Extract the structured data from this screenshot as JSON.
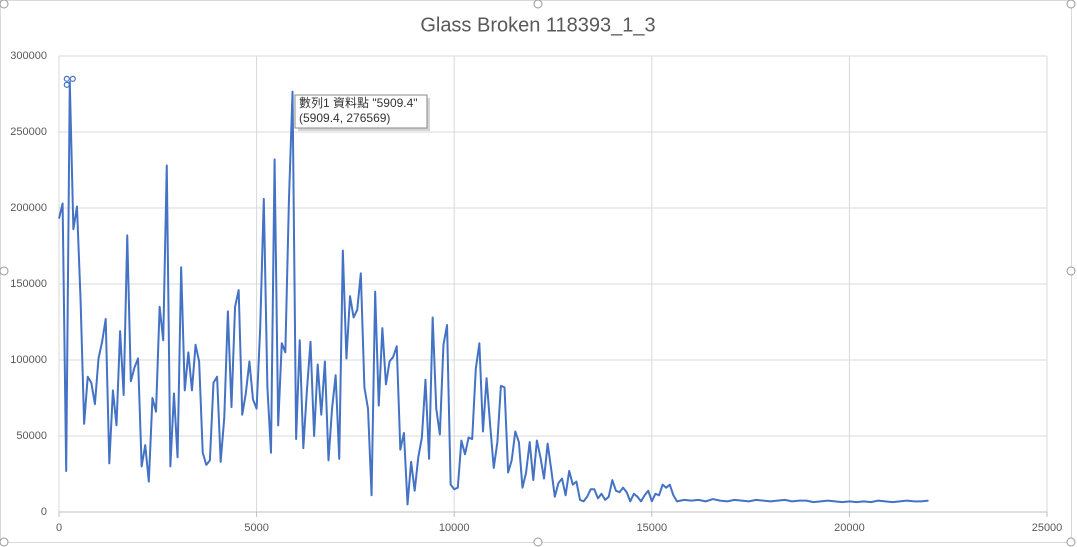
{
  "chart_data": {
    "type": "line",
    "title": "Glass Broken 118393_1_3",
    "x": [
      0,
      91,
      182,
      273,
      364,
      455,
      545,
      636,
      727,
      818,
      909,
      1000,
      1091,
      1182,
      1273,
      1364,
      1455,
      1546,
      1636,
      1727,
      1818,
      1909,
      2000,
      2091,
      2182,
      2273,
      2364,
      2455,
      2546,
      2637,
      2727,
      2818,
      2909,
      3000,
      3091,
      3182,
      3273,
      3364,
      3455,
      3546,
      3637,
      3727,
      3818,
      3909,
      4000,
      4091,
      4182,
      4273,
      4364,
      4455,
      4546,
      4637,
      4727,
      4818,
      4909,
      5000,
      5091,
      5182,
      5273,
      5364,
      5455,
      5546,
      5637,
      5727,
      5818,
      5909.4,
      6000,
      6091,
      6182,
      6273,
      6364,
      6455,
      6546,
      6637,
      6728,
      6819,
      6909,
      7000,
      7091,
      7182,
      7273,
      7364,
      7455,
      7546,
      7637,
      7728,
      7819,
      7909,
      8000,
      8091,
      8182,
      8273,
      8364,
      8455,
      8546,
      8637,
      8728,
      8819,
      8910,
      9000,
      9091,
      9182,
      9273,
      9364,
      9455,
      9546,
      9637,
      9728,
      9819,
      9910,
      10001,
      10091,
      10182,
      10273,
      10364,
      10455,
      10546,
      10637,
      10728,
      10819,
      10910,
      11001,
      11092,
      11182,
      11273,
      11364,
      11455,
      11546,
      11637,
      11728,
      11819,
      11910,
      12001,
      12092,
      12183,
      12273,
      12364,
      12455,
      12546,
      12637,
      12728,
      12819,
      12910,
      13001,
      13092,
      13183,
      13274,
      13364,
      13455,
      13546,
      13637,
      13728,
      13819,
      13910,
      14001,
      14092,
      14183,
      14274,
      14365,
      14455,
      14546,
      14637,
      14728,
      14819,
      14910,
      15001,
      15092,
      15183,
      15274,
      15365,
      15455,
      15546,
      15637,
      15819,
      16001,
      16183,
      16365,
      16546,
      16728,
      16910,
      17092,
      17274,
      17455,
      17637,
      17819,
      18001,
      18183,
      18364,
      18546,
      18728,
      18910,
      19092,
      19274,
      19455,
      19637,
      19819,
      20001,
      20183,
      20365,
      20546,
      20728,
      20910,
      21092,
      21274,
      21455,
      21637,
      21819,
      22001
    ],
    "series": [
      {
        "color": "#4472c4",
        "values": [
          193000,
          203000,
          27000,
          283000,
          186000,
          201000,
          140000,
          58000,
          89000,
          85000,
          71000,
          101000,
          112000,
          127000,
          32000,
          80000,
          57000,
          119000,
          77000,
          182000,
          86000,
          95000,
          101000,
          30000,
          44000,
          20000,
          75000,
          66000,
          135000,
          113000,
          228000,
          30000,
          78000,
          36000,
          161000,
          80000,
          105000,
          80000,
          110000,
          99000,
          39000,
          31000,
          34000,
          85000,
          89000,
          33000,
          62000,
          132000,
          69000,
          135000,
          146000,
          64000,
          78000,
          99000,
          74000,
          68000,
          121000,
          206000,
          82000,
          39000,
          232000,
          57000,
          111000,
          105000,
          205000,
          276569,
          48000,
          113000,
          42000,
          80000,
          112000,
          50000,
          97000,
          64000,
          99000,
          34000,
          68000,
          90000,
          35000,
          172000,
          101000,
          142000,
          128000,
          133000,
          157000,
          82000,
          68000,
          11000,
          145000,
          70000,
          121000,
          84000,
          99000,
          102000,
          109000,
          41000,
          52000,
          5000,
          33000,
          14000,
          36000,
          49000,
          87000,
          35000,
          128000,
          68000,
          51000,
          110000,
          123000,
          18000,
          15000,
          16000,
          47000,
          38000,
          49000,
          48000,
          94000,
          111000,
          53000,
          88000,
          57000,
          29000,
          46000,
          83000,
          82000,
          26000,
          34000,
          53000,
          46000,
          16000,
          26000,
          46000,
          21000,
          47000,
          36000,
          22000,
          45000,
          28000,
          10000,
          19000,
          22000,
          11000,
          27000,
          18000,
          20000,
          8000,
          7000,
          10000,
          15000,
          15000,
          9000,
          12000,
          8000,
          10000,
          21000,
          14000,
          13000,
          16000,
          13000,
          7000,
          12000,
          10000,
          7000,
          11000,
          14000,
          7000,
          12000,
          11000,
          18000,
          16000,
          18000,
          11000,
          7000,
          8000,
          7500,
          8000,
          7000,
          8500,
          7500,
          7000,
          8000,
          7500,
          7000,
          8000,
          7500,
          7000,
          7500,
          8000,
          7000,
          7500,
          7500,
          6500,
          7000,
          7500,
          7000,
          6500,
          7000,
          6500,
          7000,
          6500,
          7500,
          7000,
          6500,
          7000,
          7500,
          7000,
          7000,
          7500
        ]
      }
    ],
    "xlim": [
      0,
      25000
    ],
    "xticks": [
      0,
      5000,
      10000,
      15000,
      20000,
      25000
    ],
    "ylim": [
      0,
      300000
    ],
    "yticks": [
      0,
      50000,
      100000,
      150000,
      200000,
      250000,
      300000
    ],
    "grid": true,
    "tooltip": [
      "數列1 資料點 \"5909.4\"",
      "(5909.4, 276569)"
    ]
  }
}
